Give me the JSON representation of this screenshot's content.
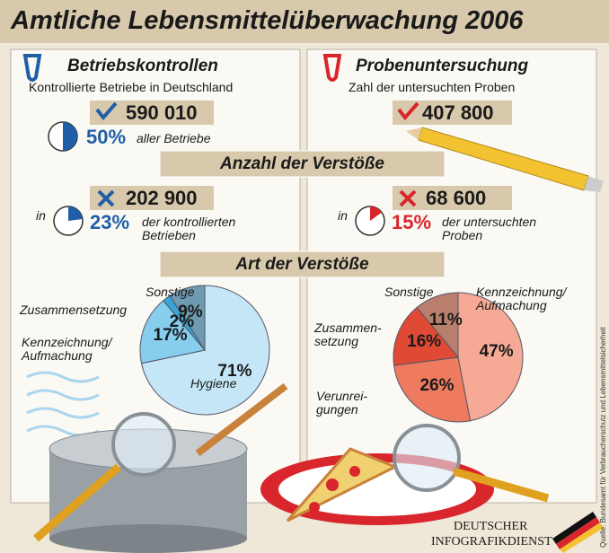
{
  "header": {
    "title": "Amtliche Lebensmittelüberwachung 2006"
  },
  "panels": [
    {
      "title": "Betriebskontrollen",
      "subtitle": "Kontrollierte Betriebe in Deutschland",
      "count": "590 010",
      "share": {
        "value": 50,
        "label": "50%",
        "text": "aller Betriebe"
      },
      "violations": {
        "count": "202 900",
        "prefix": "in",
        "share": {
          "value": 23,
          "label": "23%",
          "text": "der kontrollierten\nBetrieben"
        }
      },
      "color": "#1f5fa8"
    },
    {
      "title": "Probenuntersuchung",
      "subtitle": "Zahl der untersuchten Proben",
      "count": "407 800",
      "violations": {
        "count": "68 600",
        "prefix": "in",
        "share": {
          "value": 15,
          "label": "15%",
          "text": "der untersuchten\nProben"
        }
      },
      "color": "#d8262c"
    }
  ],
  "sections": [
    "Anzahl der Verstöße",
    "Art der Verstöße"
  ],
  "chart_data": [
    {
      "type": "pie",
      "categories": [
        "Hygiene",
        "Kennzeichnung/\nAufmachung",
        "Zusammensetzung",
        "Sonstige"
      ],
      "values": [
        71,
        17,
        2,
        9
      ],
      "value_labels": [
        "71%",
        "17%",
        "2%",
        "9%"
      ],
      "colors": [
        "#c4e6f7",
        "#86cdee",
        "#3aa6d8",
        "#6f9bb0"
      ]
    },
    {
      "type": "pie",
      "categories": [
        "Kennzeichnung/\nAufmachung",
        "Verunrei-\ngungen",
        "Zusammen-\nsetzung",
        "Sonstige"
      ],
      "values": [
        47,
        26,
        16,
        11
      ],
      "value_labels": [
        "47%",
        "26%",
        "16%",
        "11%"
      ],
      "colors": [
        "#f6a995",
        "#ee7b5f",
        "#e04a35",
        "#b97f6c"
      ]
    }
  ],
  "source": "Quelle: Bundesamt für Verbraucherschutz und Lebensmittelsicherheit",
  "logo": [
    "DEUTSCHER",
    "INFOGRAFIKDIENST"
  ]
}
